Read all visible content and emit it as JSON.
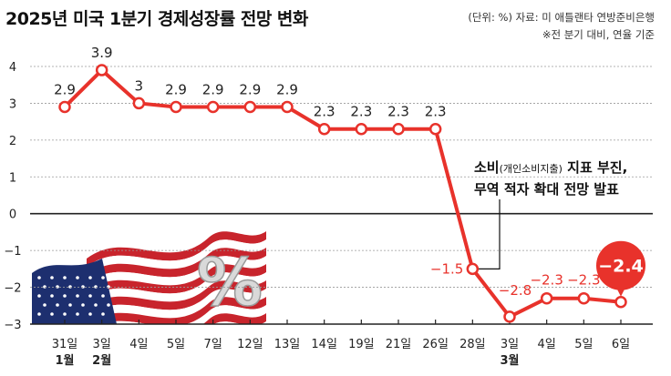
{
  "title": "2025년 미국 1분기 경제성장률 전망 변화",
  "source_line1": "(단위: %) 자료: 미 애틀랜타 연방준비은행",
  "source_line2": "※전 분기 대비, 연율 기준",
  "colors": {
    "line": "#e8322b",
    "grid": "#9a9a9a",
    "axis": "#222222",
    "label": "#222222",
    "neg_label": "#e8322b",
    "bg": "#ffffff"
  },
  "chart_data": {
    "type": "line",
    "title": "2025년 미국 1분기 경제성장률 전망 변화",
    "x": [
      "31일",
      "3일",
      "4일",
      "5일",
      "7일",
      "12일",
      "13일",
      "14일",
      "19일",
      "21일",
      "26일",
      "28일",
      "3일",
      "4일",
      "5일",
      "6일"
    ],
    "month_labels": [
      {
        "index": 0,
        "text": "1월"
      },
      {
        "index": 1,
        "text": "2월"
      },
      {
        "index": 12,
        "text": "3월"
      }
    ],
    "series": [
      {
        "values": [
          2.9,
          3.9,
          3.0,
          2.9,
          2.9,
          2.9,
          2.9,
          2.3,
          2.3,
          2.3,
          2.3,
          -1.5,
          -2.8,
          -2.3,
          -2.3,
          -2.4
        ],
        "labels": [
          "2.9",
          "3.9",
          "3",
          "2.9",
          "2.9",
          "2.9",
          "2.9",
          "2.3",
          "2.3",
          "2.3",
          "2.3",
          "−1.5",
          "−2.8",
          "−2.3",
          "−2.3",
          "−2.4"
        ]
      }
    ],
    "y_ticks": [
      "4",
      "3",
      "2",
      "1",
      "0",
      "−1",
      "−2",
      "−3"
    ],
    "ylim": [
      -3,
      4
    ],
    "grid": true,
    "annotation": {
      "line1": "소비",
      "line1_small": "(개인소비지출)",
      "line1_rest": " 지표 부진,",
      "line2": "무역 적자 확대 전망 발표",
      "target_index": 11
    },
    "highlight_index": 15
  }
}
